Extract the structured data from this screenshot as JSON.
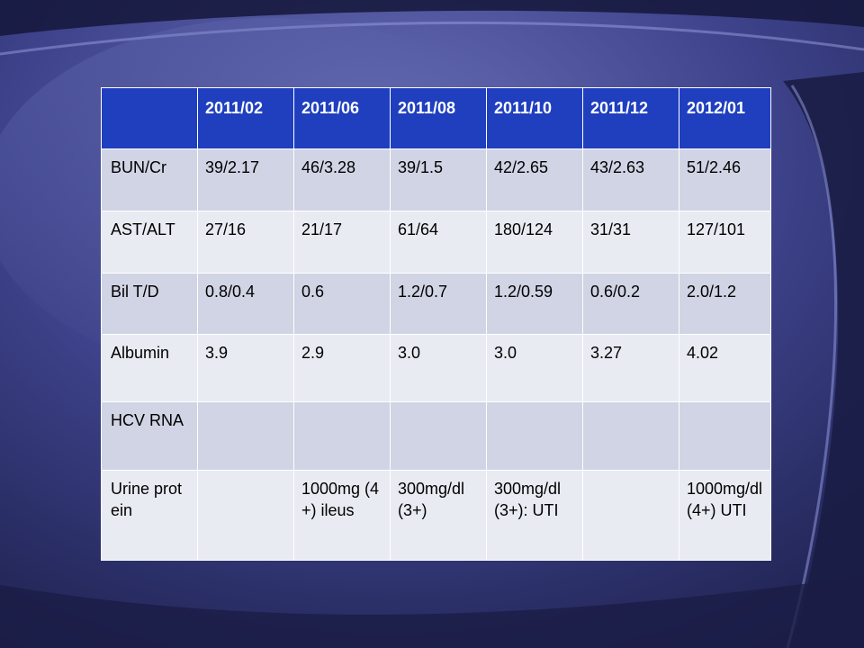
{
  "table": {
    "columns": [
      "",
      "2011/02",
      "2011/06",
      "2011/08",
      "2011/10",
      "2011/12",
      "2012/01"
    ],
    "rows": [
      {
        "label": "BUN/Cr",
        "cells": [
          "39/2.17",
          "46/3.28",
          "39/1.5",
          "42/2.65",
          "43/2.63",
          "51/2.46"
        ]
      },
      {
        "label": "AST/ALT",
        "cells": [
          "27/16",
          "21/17",
          "61/64",
          "180/124",
          "31/31",
          "127/101"
        ]
      },
      {
        "label": "Bil T/D",
        "cells": [
          "0.8/0.4",
          "0.6",
          "1.2/0.7",
          "1.2/0.59",
          "0.6/0.2",
          "2.0/1.2"
        ]
      },
      {
        "label": "Albumin",
        "cells": [
          "3.9",
          "2.9",
          "3.0",
          "3.0",
          "3.27",
          "4.02"
        ]
      },
      {
        "label": "HCV RNA",
        "cells": [
          "",
          "",
          "",
          "",
          "",
          ""
        ]
      },
      {
        "label": "Urine protein",
        "cells": [
          "",
          "1000mg (4+) ileus",
          "300mg/dl(3+)",
          "300mg/dl(3+): UTI",
          "",
          "1000mg/dl(4+) UTI"
        ]
      }
    ]
  },
  "colors": {
    "header": "#1f3fbf",
    "row_dark": "#d0d4e4",
    "row_light": "#e9ebf3",
    "background": "#2a2f66"
  }
}
